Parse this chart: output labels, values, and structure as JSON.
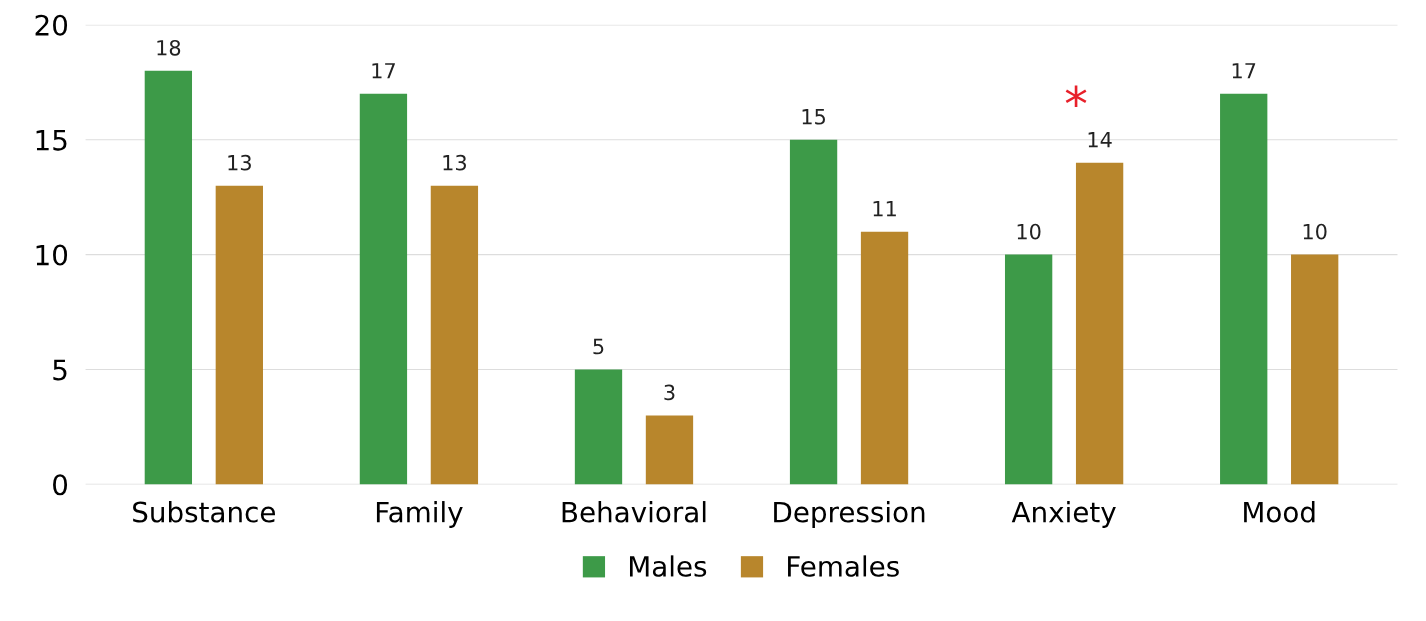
{
  "chart_data": {
    "type": "bar",
    "categories": [
      "Substance",
      "Family",
      "Behavioral",
      "Depression",
      "Anxiety",
      "Mood"
    ],
    "series": [
      {
        "name": "Males",
        "color": "#3d9a48",
        "values": [
          18,
          17,
          5,
          15,
          10,
          17
        ]
      },
      {
        "name": "Females",
        "color": "#b8862c",
        "values": [
          13,
          13,
          3,
          11,
          14,
          10
        ]
      }
    ],
    "ylim": [
      0,
      20
    ],
    "yticks": [
      0,
      5,
      10,
      15,
      20
    ],
    "grid": "y",
    "legend": "bottom",
    "data_labels": true,
    "annotations": [
      "*"
    ]
  }
}
